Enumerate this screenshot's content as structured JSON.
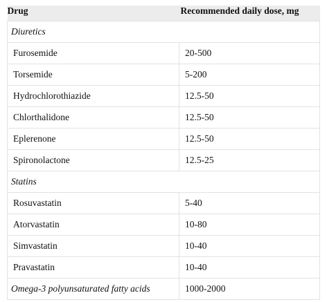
{
  "table": {
    "header": [
      "Drug",
      "Recommended daily dose, mg"
    ],
    "rows": [
      [
        "Diuretics"
      ],
      [
        "Furosemide",
        "20-500"
      ],
      [
        "Torsemide",
        "5-200"
      ],
      [
        "Hydrochlorothiazide",
        "12.5-50"
      ],
      [
        "Chlorthalidone",
        "12.5-50"
      ],
      [
        "Eplerenone",
        "12.5-50"
      ],
      [
        "Spironolactone",
        "12.5-25"
      ],
      [
        "Statins"
      ],
      [
        "Rosuvastatin",
        "5-40"
      ],
      [
        "Atorvastatin",
        "10-80"
      ],
      [
        "Simvastatin",
        "10-40"
      ],
      [
        "Pravastatin",
        "10-40"
      ],
      [
        "Omega-3 polyunsaturated fatty acids",
        "1000-2000"
      ]
    ]
  }
}
